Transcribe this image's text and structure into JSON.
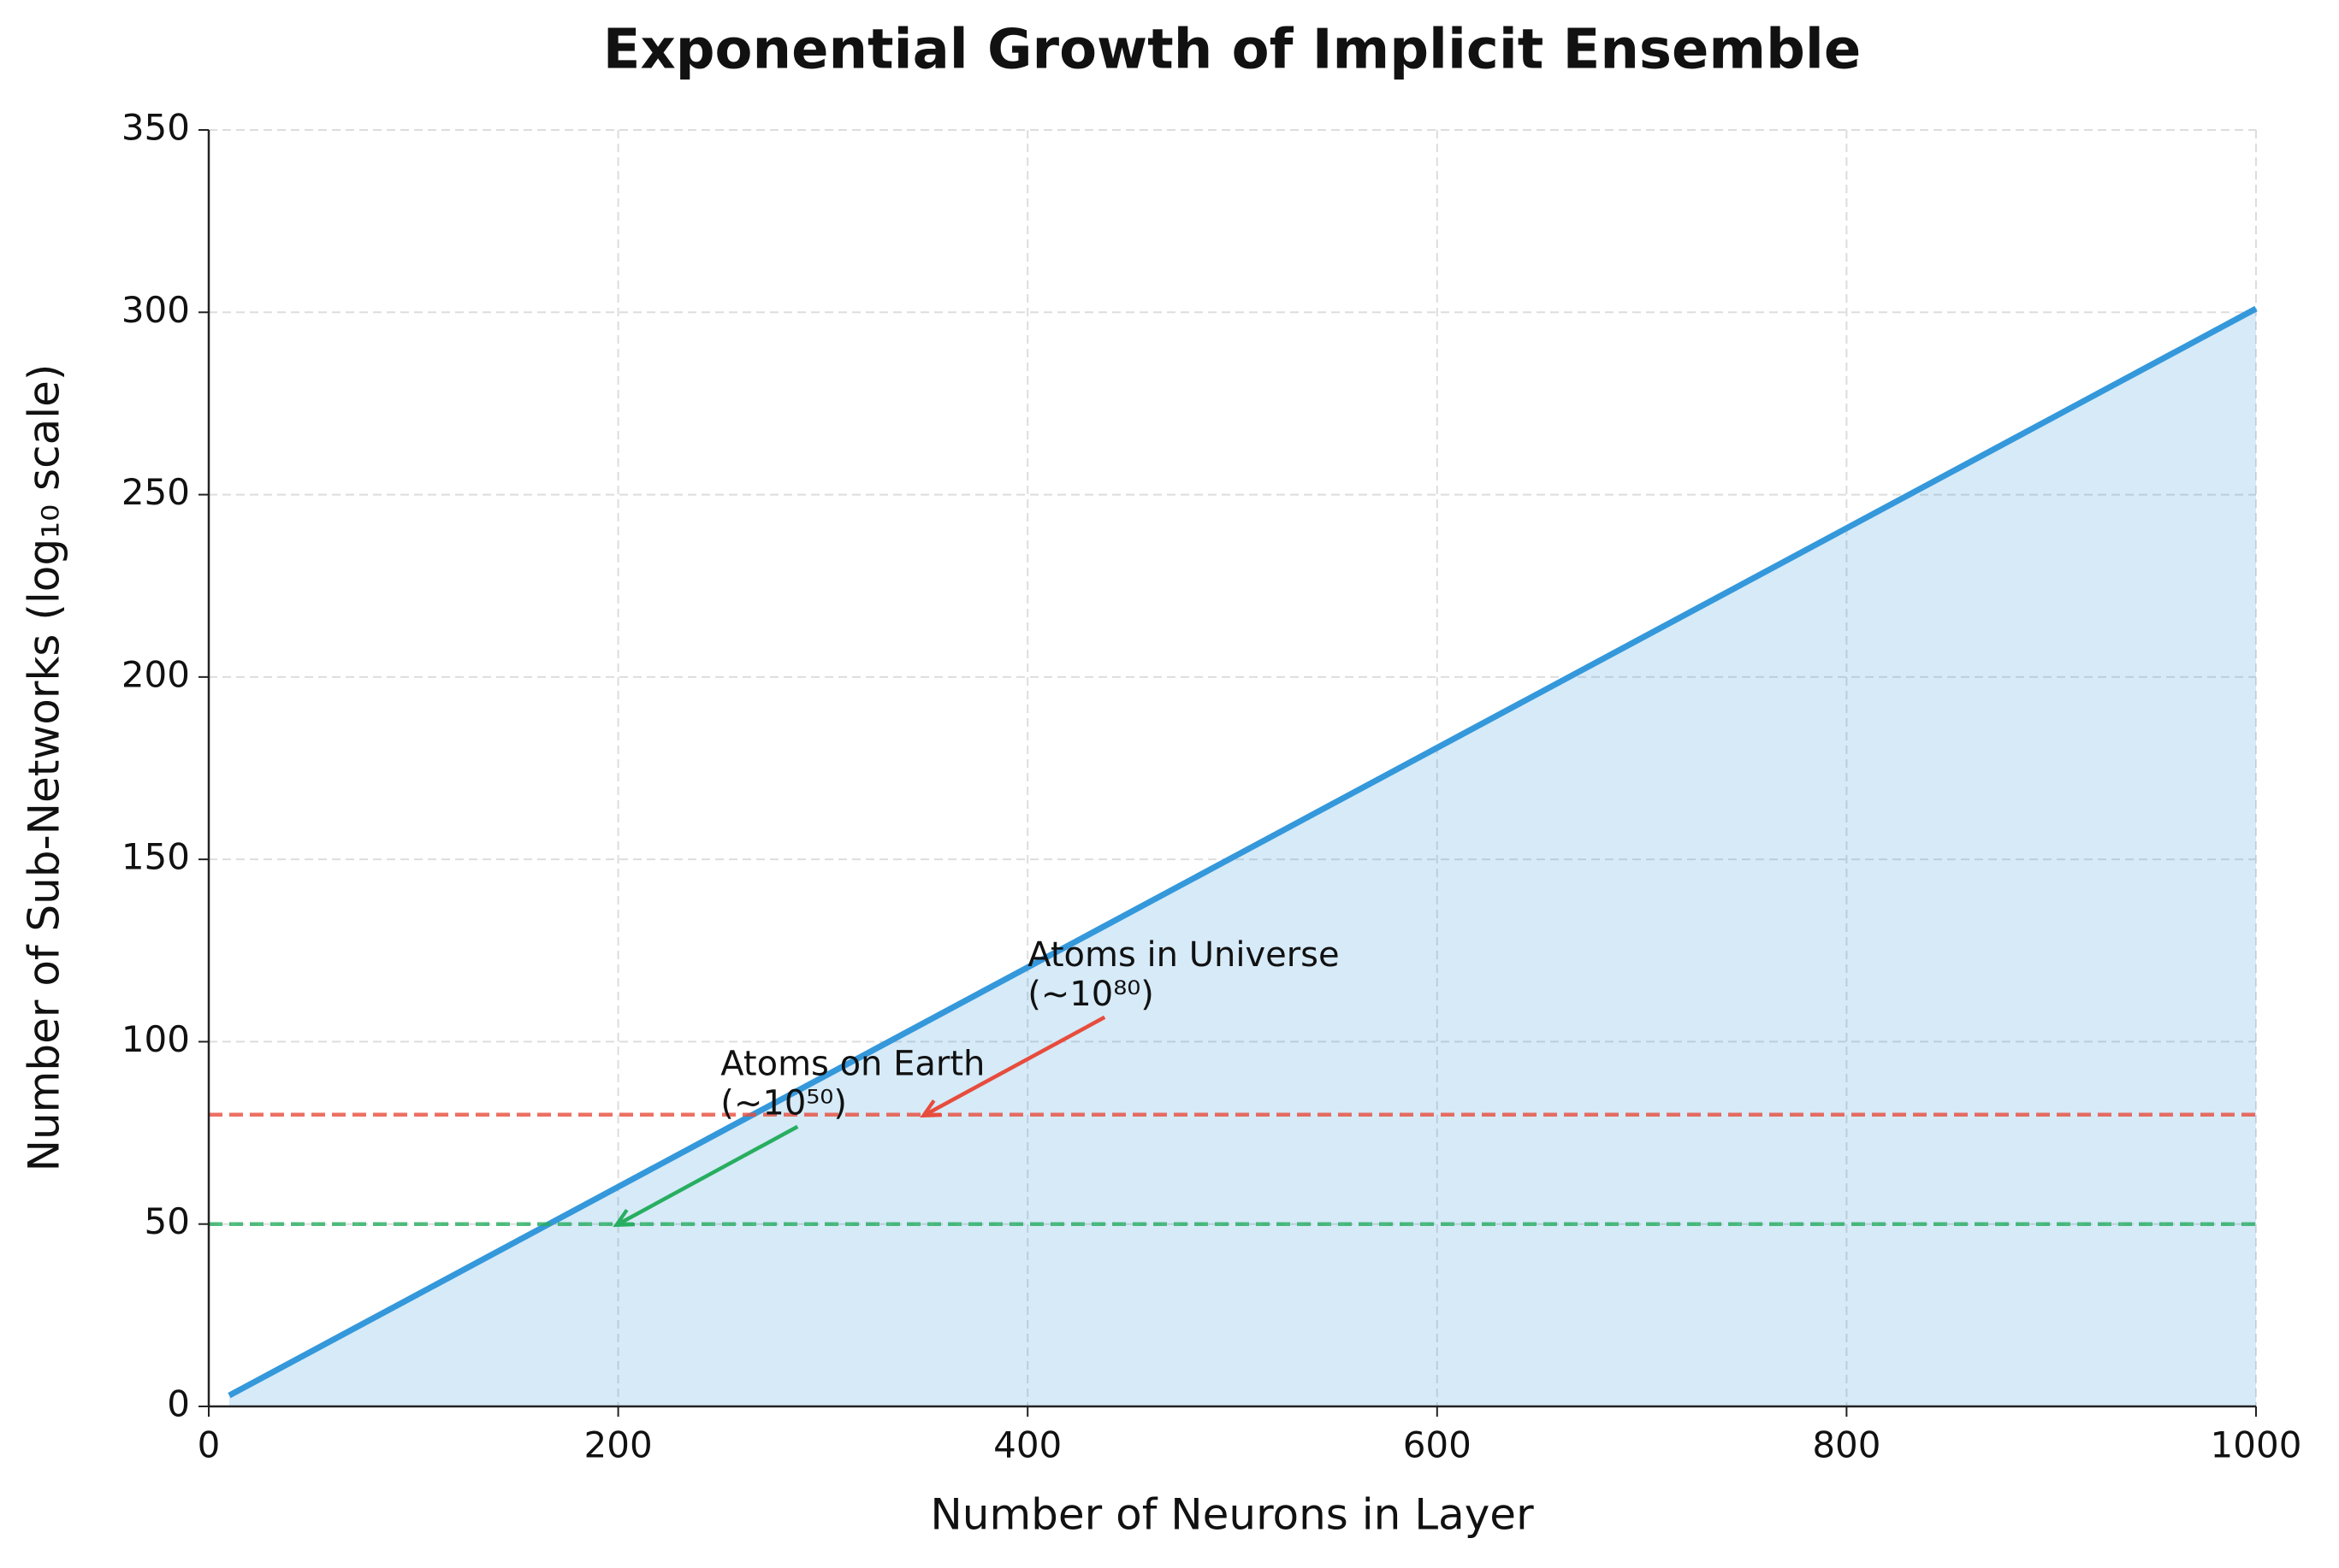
{
  "chart_data": {
    "type": "line",
    "title": "Exponential Growth of Implicit Ensemble",
    "x_label": "Number of Neurons in Layer",
    "y_label": "Number of Sub-Networks (log₁₀ scale)",
    "x": [
      10,
      200,
      400,
      600,
      800,
      1000
    ],
    "series": [
      {
        "color": "#3498db",
        "values": [
          3.0,
          60.2,
          120.4,
          180.6,
          240.8,
          301.0
        ],
        "fill": true
      }
    ],
    "hlines": [
      {
        "value": 80,
        "color": "#e74c3c"
      },
      {
        "value": 50,
        "color": "#27ae60"
      }
    ],
    "annotations": [
      {
        "lines": [
          "Atoms in Universe",
          "(~10⁸⁰)"
        ],
        "x": 350,
        "y": 80,
        "text_x": 400,
        "text_y": 110,
        "color": "#e74c3c"
      },
      {
        "lines": [
          "Atoms on Earth",
          "(~10⁵⁰)"
        ],
        "x": 200,
        "y": 50,
        "text_x": 250,
        "text_y": 80,
        "color": "#27ae60"
      }
    ],
    "xlim": [
      0,
      1000
    ],
    "xticks": [
      0,
      200,
      400,
      600,
      800,
      1000
    ],
    "ylim": [
      0,
      350
    ],
    "yticks": [
      0,
      50,
      100,
      150,
      200,
      250,
      300,
      350
    ],
    "grid": true
  }
}
